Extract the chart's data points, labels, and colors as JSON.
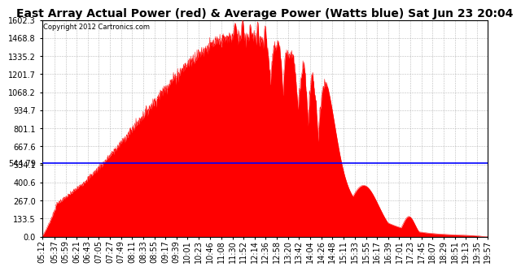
{
  "title": "East Array Actual Power (red) & Average Power (Watts blue) Sat Jun 23 20:04",
  "copyright": "Copyright 2012 Cartronics.com",
  "avg_power": 544.79,
  "y_max": 1602.3,
  "y_min": 0.0,
  "y_ticks": [
    0.0,
    133.5,
    267.0,
    400.6,
    534.1,
    667.6,
    801.1,
    934.7,
    1068.2,
    1201.7,
    1335.2,
    1468.8,
    1602.3
  ],
  "background_color": "#ffffff",
  "fill_color": "#ff0000",
  "line_color": "#0000ff",
  "title_fontsize": 10,
  "tick_fontsize": 7,
  "x_tick_labels": [
    "05:12",
    "05:37",
    "05:59",
    "06:21",
    "06:43",
    "07:05",
    "07:27",
    "07:49",
    "08:11",
    "08:33",
    "08:55",
    "09:17",
    "09:39",
    "10:01",
    "10:23",
    "10:46",
    "11:08",
    "11:30",
    "11:52",
    "12:14",
    "12:36",
    "12:58",
    "13:20",
    "13:42",
    "14:04",
    "14:26",
    "14:48",
    "15:11",
    "15:33",
    "15:55",
    "16:17",
    "16:39",
    "17:01",
    "17:23",
    "17:45",
    "18:07",
    "18:29",
    "18:51",
    "19:13",
    "19:35",
    "19:57"
  ]
}
